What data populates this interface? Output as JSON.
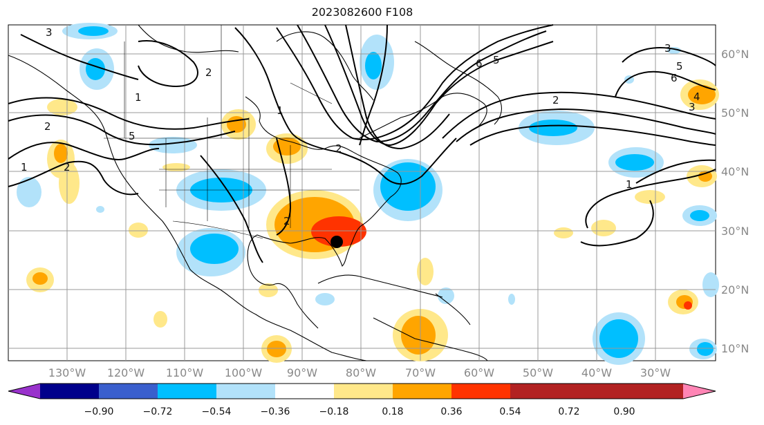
{
  "title": "2023082600 F108",
  "longitude_labels": [
    "130°W",
    "120°W",
    "110°W",
    "100°W",
    "90°W",
    "80°W",
    "70°W",
    "60°W",
    "50°W",
    "40°W",
    "30°W"
  ],
  "latitude_labels": [
    "60°N",
    "50°N",
    "40°N",
    "30°N",
    "20°N",
    "10°N"
  ],
  "colorbar": {
    "ticks": [
      "−0.90",
      "−0.72",
      "−0.54",
      "−0.36",
      "−0.18",
      "0.18",
      "0.36",
      "0.54",
      "0.72",
      "0.90"
    ],
    "colors": [
      "#9932CC",
      "#00008B",
      "#3A5FCD",
      "#00BFFF",
      "#B2E2FA",
      "#FFFFFF",
      "#FFE88A",
      "#FFA500",
      "#FF3300",
      "#B22222",
      "#FF85B5"
    ]
  },
  "contour_labels": [
    "3",
    "2",
    "1",
    "5",
    "2",
    "1",
    "2",
    "6",
    "5",
    "2",
    "3",
    "5",
    "6",
    "4",
    "3",
    "1",
    "2",
    "2",
    "1"
  ],
  "marker": "storm-center-dot"
}
